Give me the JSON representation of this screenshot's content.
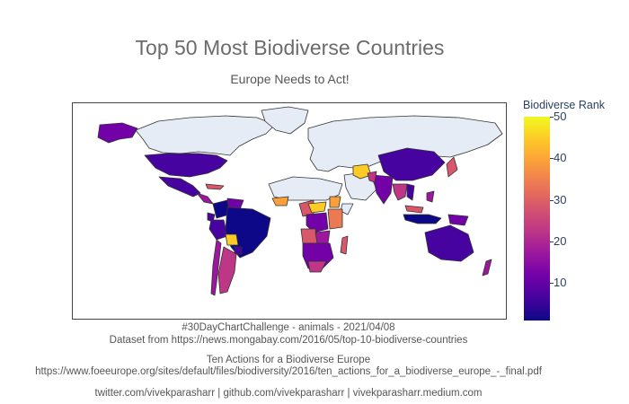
{
  "chart_data": {
    "type": "choropleth",
    "title": "Top 50 Most Biodiverse Countries",
    "subtitle": "Europe Needs to Act!",
    "colorbar": {
      "title": "Biodiverse Rank",
      "ticks": [
        10,
        20,
        30,
        40,
        50
      ],
      "range": [
        1,
        50
      ]
    },
    "colorscale": [
      "#0d0887",
      "#46039f",
      "#7201a8",
      "#9c179e",
      "#bd3786",
      "#d8576b",
      "#ed7953",
      "#fb9f3a",
      "#fdca26",
      "#f0f921"
    ],
    "land_color": "#e5ecf6",
    "footer": {
      "line1": "#30DayChartChallenge - animals - 2021/04/08",
      "line2": "Dataset from https://news.mongabay.com/2016/05/top-10-biodiverse-countries",
      "line3": "Ten Actions for a Biodiverse Europe",
      "line4": "https://www.foeeurope.org/sites/default/files/biodiversity/2016/ten_actions_for_a_biodiverse_europe_-_final.pdf",
      "line5": "twitter.com/vivekparasharr | github.com/vivekparasharr | vivekparasharr.medium.com"
    }
  }
}
